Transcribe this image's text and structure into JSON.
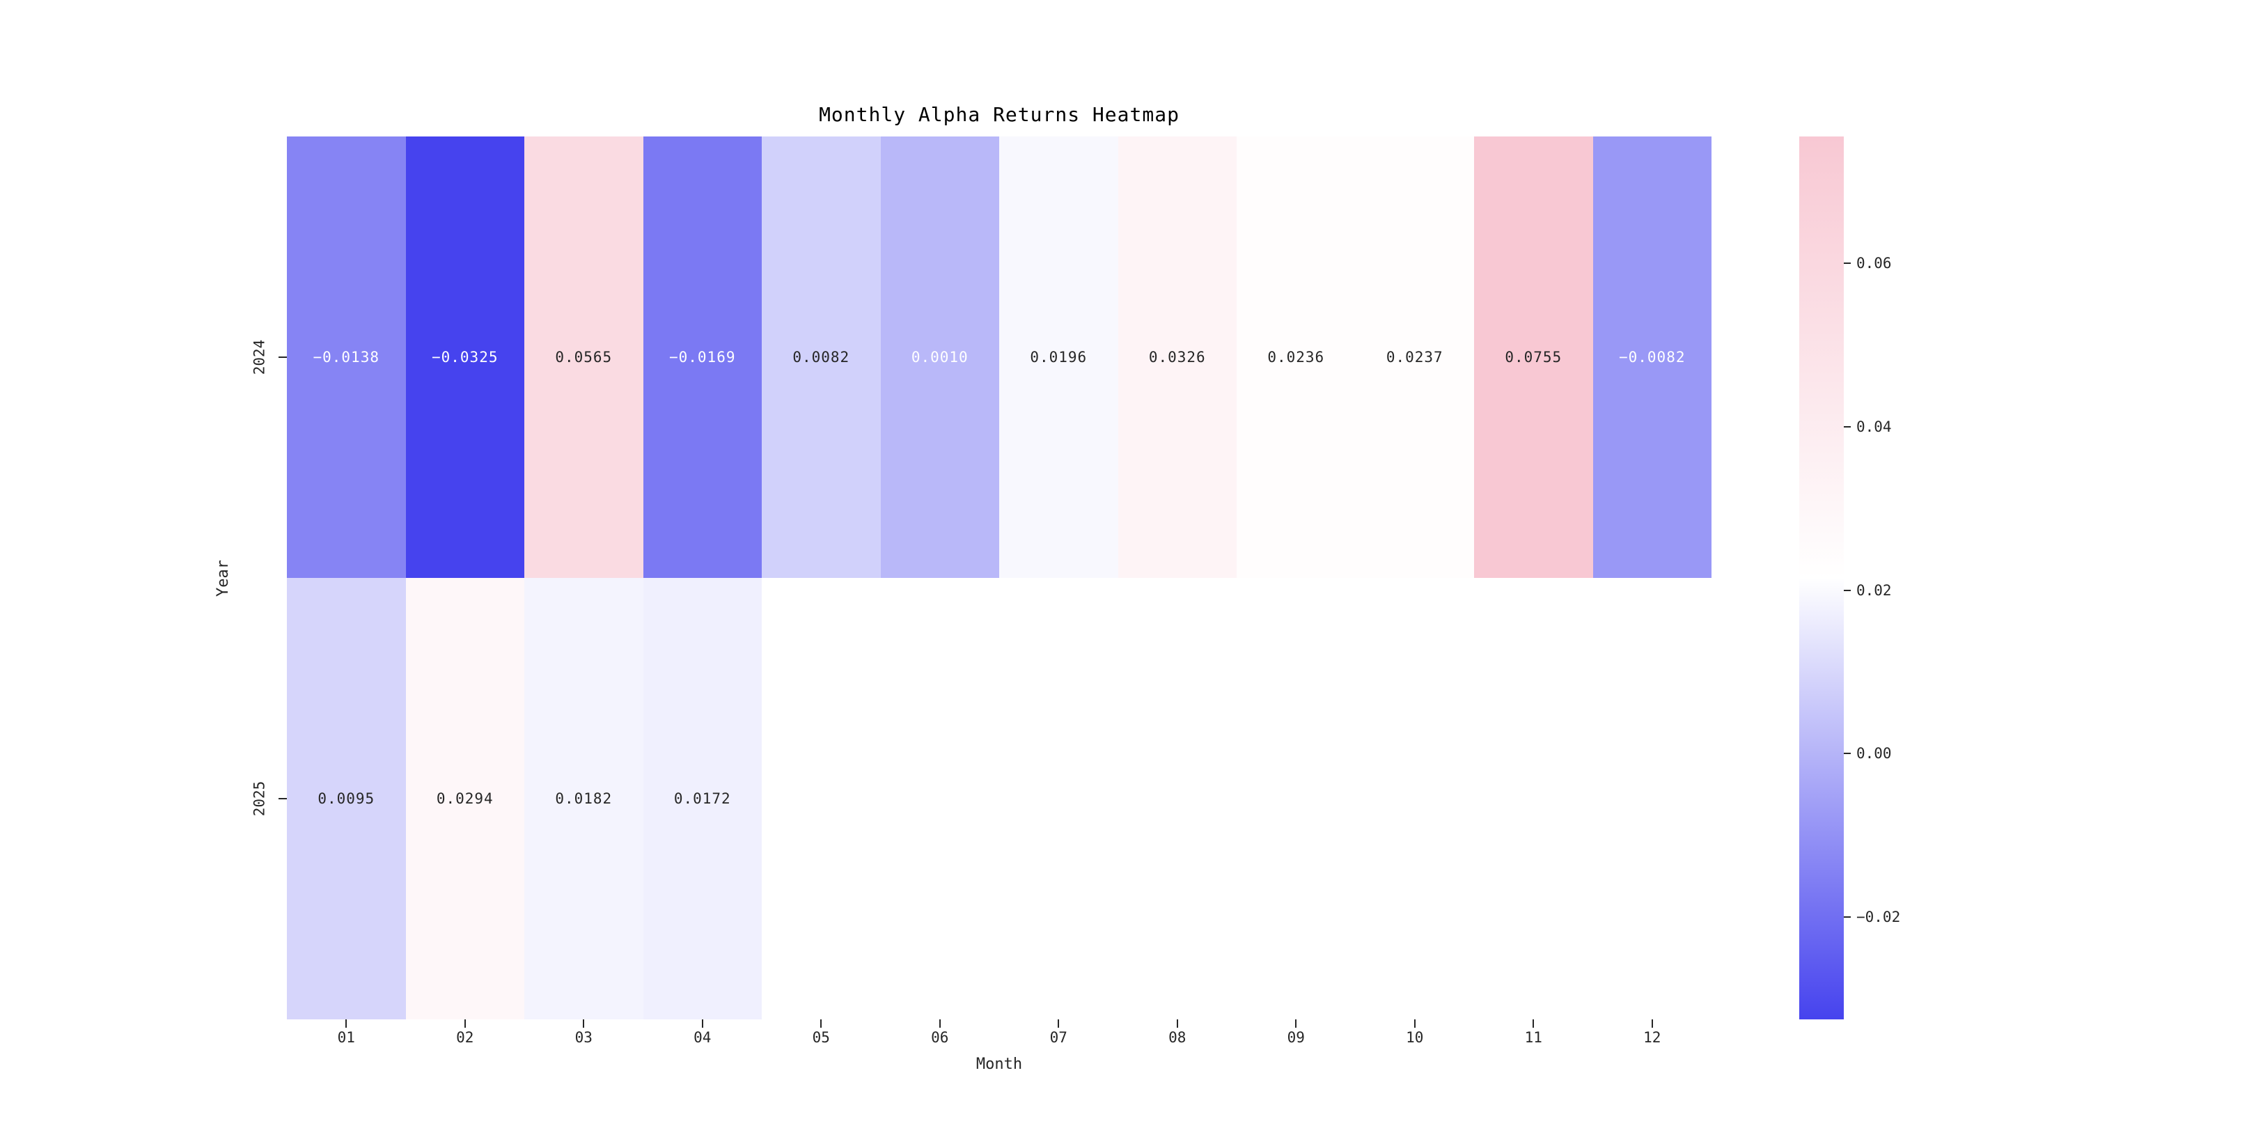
{
  "title": "Monthly Alpha Returns Heatmap",
  "xlabel": "Month",
  "ylabel": "Year",
  "chart_data": {
    "type": "heatmap",
    "title": "Monthly Alpha Returns Heatmap",
    "xlabel": "Month",
    "ylabel": "Year",
    "columns": [
      "01",
      "02",
      "03",
      "04",
      "05",
      "06",
      "07",
      "08",
      "09",
      "10",
      "11",
      "12"
    ],
    "rows": [
      "2024",
      "2025"
    ],
    "values": [
      [
        -0.0138,
        -0.0325,
        0.0565,
        -0.0169,
        0.0082,
        0.001,
        0.0196,
        0.0326,
        0.0236,
        0.0237,
        0.0755,
        -0.0082
      ],
      [
        0.0095,
        0.0294,
        0.0182,
        0.0172,
        null,
        null,
        null,
        null,
        null,
        null,
        null,
        null
      ]
    ],
    "annotation_decimals": 4,
    "colormap": {
      "vmin": -0.0325,
      "vmax": 0.0755,
      "min_color": "#4643ee",
      "mid_color": "#ffffff",
      "max_color": "#f8c8d3",
      "dark_text_color": "#262626",
      "light_text_color": "#ffffff"
    },
    "colorbar": {
      "ticks": [
        0.06,
        0.04,
        0.02,
        0.0,
        -0.02
      ],
      "tick_decimals": 2
    },
    "legend_position": "right",
    "grid": false
  }
}
